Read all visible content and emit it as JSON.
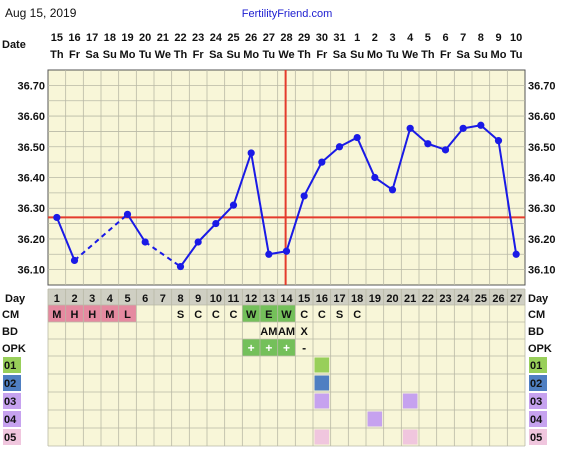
{
  "header": {
    "date": "Aug 15, 2019",
    "brand": "FertilityFriend.com"
  },
  "colors": {
    "background": "#f8f6d8",
    "grid": "#b9b9a6",
    "temperature_line": "#1a1ae6",
    "coverline": "#e43b2c",
    "ovulation_line": "#e43b2c",
    "day_row_bg": "#cfcfc3",
    "menses": "#e58aa0",
    "fertile_cm": "#74c05a",
    "opk_positive": "#74c05a",
    "series_01": "#98cf5a",
    "series_02": "#4f7fc2",
    "series_03": "#c6a2ef",
    "series_04": "#c6a2ef",
    "series_05": "#f0c6de",
    "text": "#111111"
  },
  "chart_data": {
    "type": "line",
    "title": "",
    "xlabel": "",
    "ylabel": "",
    "row_labels": {
      "date": "Date",
      "day": "Day",
      "cm": "CM",
      "bd": "BD",
      "opk": "OPK"
    },
    "dates": [
      "15",
      "16",
      "17",
      "18",
      "19",
      "20",
      "21",
      "22",
      "23",
      "24",
      "25",
      "26",
      "27",
      "28",
      "29",
      "30",
      "31",
      "1",
      "2",
      "3",
      "4",
      "5",
      "6",
      "7",
      "8",
      "9",
      "10"
    ],
    "weekdays": [
      "Th",
      "Fr",
      "Sa",
      "Su",
      "Mo",
      "Tu",
      "We",
      "Th",
      "Fr",
      "Sa",
      "Su",
      "Mo",
      "Tu",
      "We",
      "Th",
      "Fr",
      "Sa",
      "Su",
      "Mo",
      "Tu",
      "We",
      "Th",
      "Fr",
      "Sa",
      "Su",
      "Mo",
      "Tu"
    ],
    "cycle_days": [
      1,
      2,
      3,
      4,
      5,
      6,
      7,
      8,
      9,
      10,
      11,
      12,
      13,
      14,
      15,
      16,
      17,
      18,
      19,
      20,
      21,
      22,
      23,
      24,
      25,
      26,
      27
    ],
    "y_ticks": [
      36.1,
      36.2,
      36.3,
      36.4,
      36.5,
      36.6,
      36.7
    ],
    "ylim": [
      36.05,
      36.75
    ],
    "temperatures": [
      36.27,
      36.13,
      null,
      null,
      36.28,
      36.19,
      null,
      36.11,
      36.19,
      36.25,
      36.31,
      36.48,
      36.15,
      36.16,
      36.34,
      36.45,
      36.5,
      36.53,
      36.4,
      36.36,
      36.56,
      36.51,
      36.49,
      36.56,
      36.57,
      36.52,
      36.15
    ],
    "coverline": 36.27,
    "ovulation_day": 14,
    "cm": [
      "M",
      "H",
      "H",
      "M",
      "L",
      "",
      "",
      "S",
      "C",
      "C",
      "C",
      "W",
      "E",
      "W",
      "C",
      "C",
      "S",
      "C",
      "",
      "",
      "",
      "",
      "",
      "",
      "",
      "",
      ""
    ],
    "cm_menses_days": [
      1,
      2,
      3,
      4,
      5
    ],
    "cm_fertile_days": [
      12,
      13,
      14
    ],
    "bd": [
      "",
      "",
      "",
      "",
      "",
      "",
      "",
      "",
      "",
      "",
      "",
      "",
      "AM",
      "AM",
      "X",
      "",
      "",
      "",
      "",
      "",
      "",
      "",
      "",
      "",
      "",
      "",
      ""
    ],
    "opk": [
      "",
      "",
      "",
      "",
      "",
      "",
      "",
      "",
      "",
      "",
      "",
      "+",
      "+",
      "+",
      "-",
      "",
      "",
      "",
      "",
      "",
      "",
      "",
      "",
      "",
      "",
      "",
      ""
    ],
    "custom_rows": [
      {
        "label": "01",
        "days": [
          16
        ]
      },
      {
        "label": "02",
        "days": [
          16
        ]
      },
      {
        "label": "03",
        "days": [
          16,
          21
        ]
      },
      {
        "label": "04",
        "days": [
          19
        ]
      },
      {
        "label": "05",
        "days": [
          16,
          21
        ]
      }
    ],
    "grid": true
  }
}
